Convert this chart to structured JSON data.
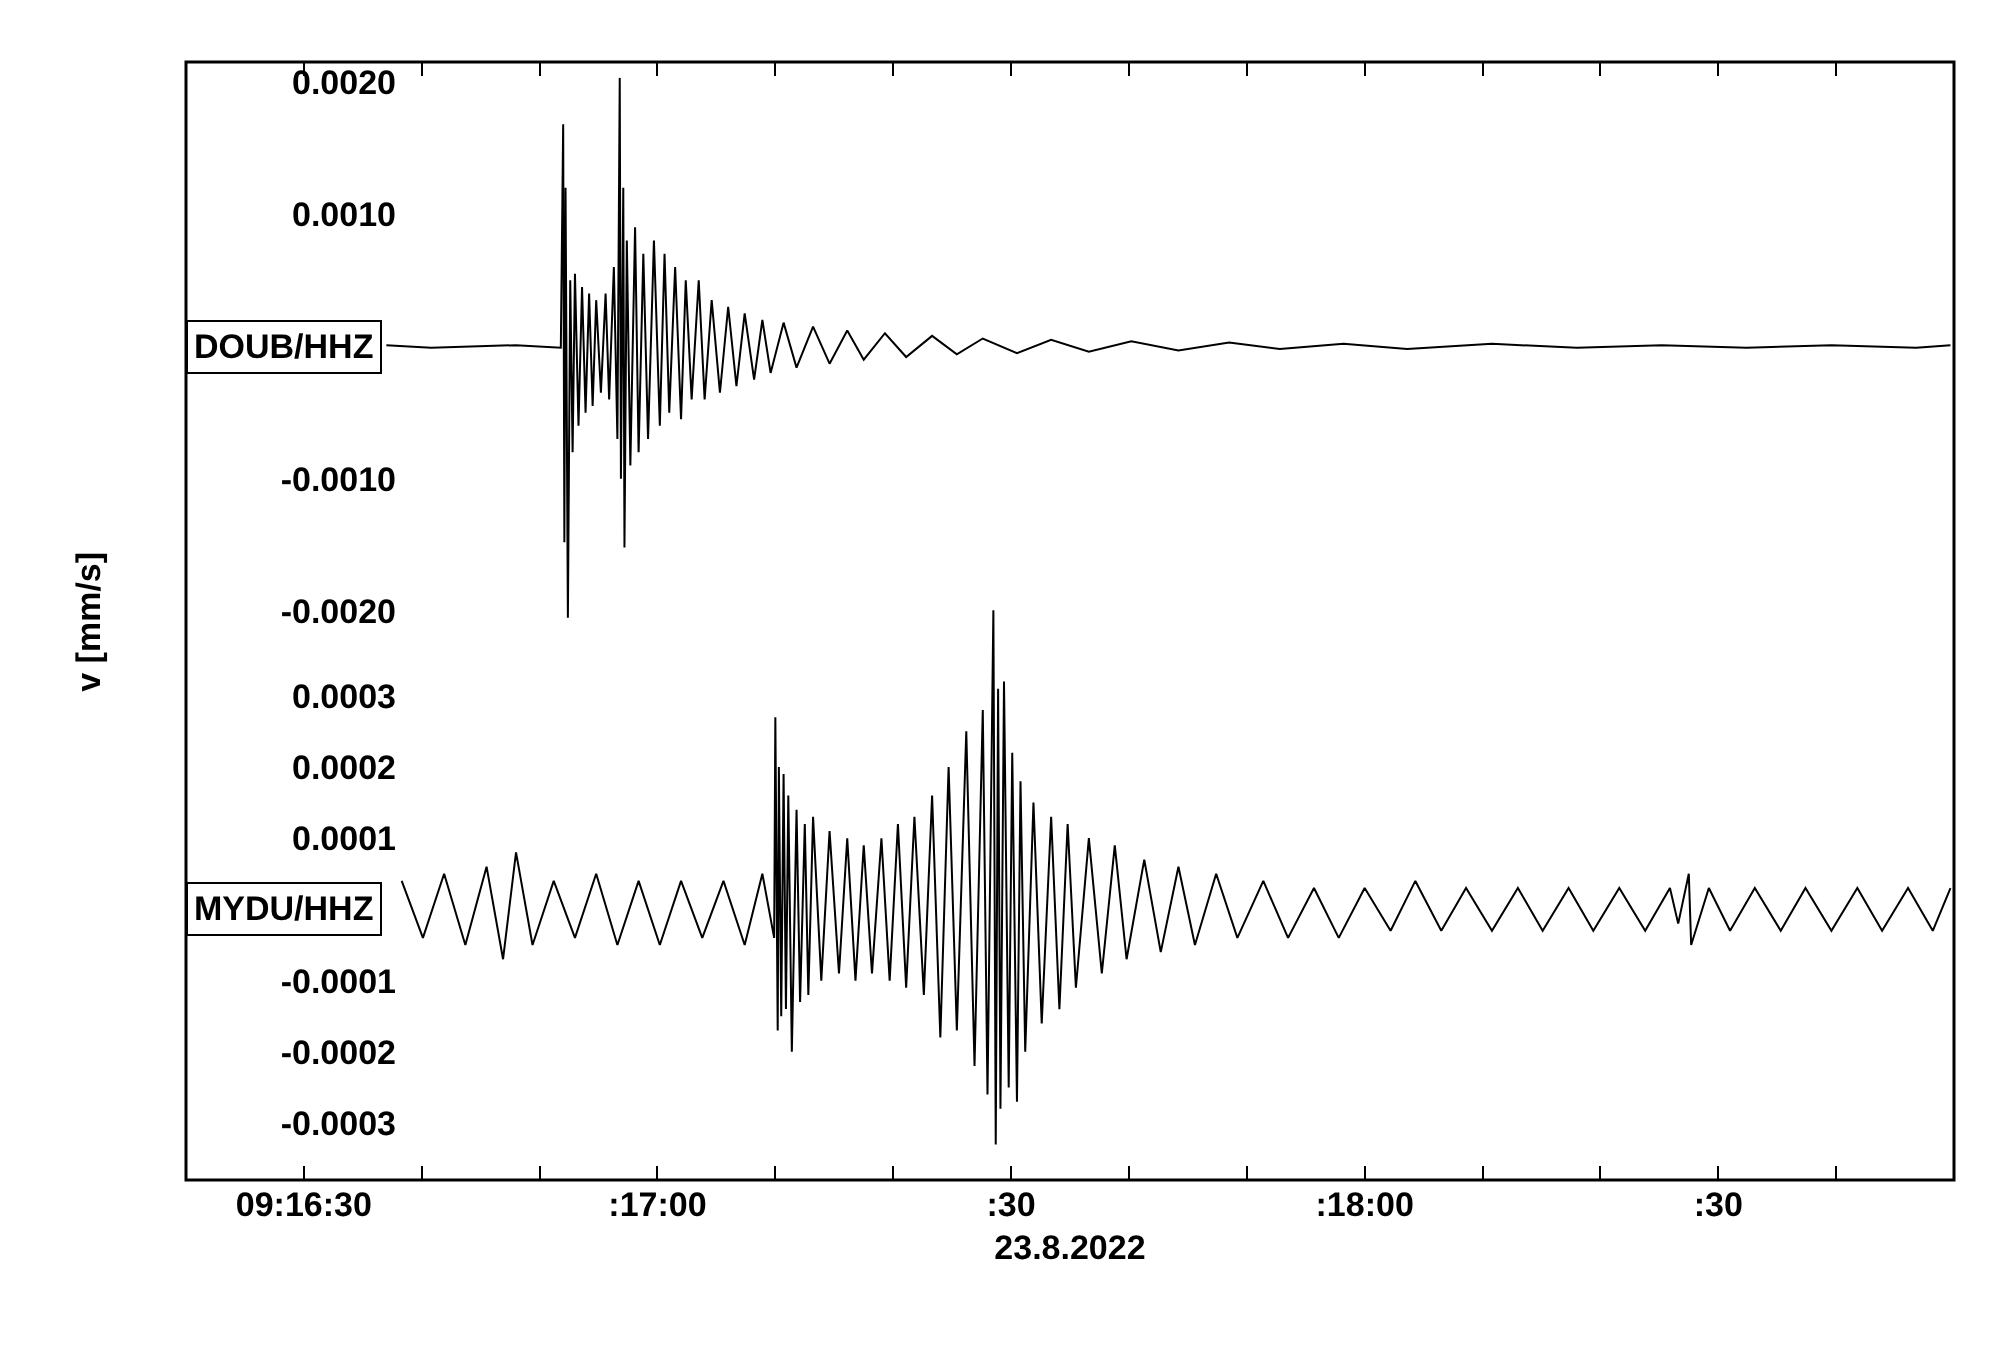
{
  "chart_data": [
    {
      "type": "line",
      "ylabel": "v [mm/s]",
      "tick_labels": "y",
      "xlim": [
        "2022-08-23T09:16:20",
        "2022-08-23T09:18:50"
      ],
      "xticks": [
        {
          "value": "2022-08-23T09:16:30",
          "label": null
        },
        {
          "value": "2022-08-23T09:16:40",
          "label": null
        },
        {
          "value": "2022-08-23T09:16:50",
          "label": null
        },
        {
          "value": "2022-08-23T09:17:00",
          "label": null
        },
        {
          "value": "2022-08-23T09:17:10",
          "label": null
        },
        {
          "value": "2022-08-23T09:17:20",
          "label": null
        },
        {
          "value": "2022-08-23T09:17:30",
          "label": null
        },
        {
          "value": "2022-08-23T09:17:40",
          "label": null
        },
        {
          "value": "2022-08-23T09:17:50",
          "label": null
        },
        {
          "value": "2022-08-23T09:18:00",
          "label": null
        },
        {
          "value": "2022-08-23T09:18:10",
          "label": null
        },
        {
          "value": "2022-08-23T09:18:20",
          "label": null
        },
        {
          "value": "2022-08-23T09:18:30",
          "label": null
        },
        {
          "value": "2022-08-23T09:18:40",
          "label": null
        }
      ],
      "ylim": [
        -0.0063,
        0.00215
      ],
      "yticks": [
        {
          "value": 0.002,
          "label": "0.0020"
        },
        {
          "value": 0.001,
          "label": "0.0010"
        },
        {
          "value": -0.001,
          "label": "-0.0010"
        },
        {
          "value": -0.002,
          "label": "-0.0020"
        }
      ],
      "series": [
        {
          "name": "DOUB/HHZ",
          "color": "#000000",
          "x": [
            "2022-08-23T09:16:37.0",
            "2022-08-23T09:16:40.8",
            "2022-08-23T09:16:48.0",
            "2022-08-23T09:16:51.8",
            "2022-08-23T09:16:52.0",
            "2022-08-23T09:16:52.1",
            "2022-08-23T09:16:52.2",
            "2022-08-23T09:16:52.4",
            "2022-08-23T09:16:52.6",
            "2022-08-23T09:16:52.8",
            "2022-08-23T09:16:53.0",
            "2022-08-23T09:16:53.3",
            "2022-08-23T09:16:53.6",
            "2022-08-23T09:16:53.9",
            "2022-08-23T09:16:54.2",
            "2022-08-23T09:16:54.5",
            "2022-08-23T09:16:54.8",
            "2022-08-23T09:16:55.2",
            "2022-08-23T09:16:55.6",
            "2022-08-23T09:16:55.9",
            "2022-08-23T09:16:56.3",
            "2022-08-23T09:16:56.6",
            "2022-08-23T09:16:56.8",
            "2022-08-23T09:16:56.9",
            "2022-08-23T09:16:57.1",
            "2022-08-23T09:16:57.2",
            "2022-08-23T09:16:57.4",
            "2022-08-23T09:16:57.7",
            "2022-08-23T09:16:58.1",
            "2022-08-23T09:16:58.4",
            "2022-08-23T09:16:58.8",
            "2022-08-23T09:16:59.2",
            "2022-08-23T09:16:59.7",
            "2022-08-23T09:17:00.2",
            "2022-08-23T09:17:00.6",
            "2022-08-23T09:17:01.0",
            "2022-08-23T09:17:01.5",
            "2022-08-23T09:17:02.0",
            "2022-08-23T09:17:02.4",
            "2022-08-23T09:17:02.9",
            "2022-08-23T09:17:03.5",
            "2022-08-23T09:17:04.0",
            "2022-08-23T09:17:04.6",
            "2022-08-23T09:17:05.3",
            "2022-08-23T09:17:06.0",
            "2022-08-23T09:17:06.7",
            "2022-08-23T09:17:07.4",
            "2022-08-23T09:17:08.2",
            "2022-08-23T09:17:08.9",
            "2022-08-23T09:17:09.6",
            "2022-08-23T09:17:10.7",
            "2022-08-23T09:17:11.8",
            "2022-08-23T09:17:13.2",
            "2022-08-23T09:17:14.6",
            "2022-08-23T09:17:16.1",
            "2022-08-23T09:17:17.5",
            "2022-08-23T09:17:19.3",
            "2022-08-23T09:17:21.1",
            "2022-08-23T09:17:23.3",
            "2022-08-23T09:17:25.4",
            "2022-08-23T09:17:27.6",
            "2022-08-23T09:17:30.5",
            "2022-08-23T09:17:33.4",
            "2022-08-23T09:17:36.6",
            "2022-08-23T09:17:40.2",
            "2022-08-23T09:17:44.2",
            "2022-08-23T09:17:48.5",
            "2022-08-23T09:17:52.8",
            "2022-08-23T09:17:58.2",
            "2022-08-23T09:18:03.6",
            "2022-08-23T09:18:10.8",
            "2022-08-23T09:18:18.0",
            "2022-08-23T09:18:25.2",
            "2022-08-23T09:18:32.4",
            "2022-08-23T09:18:39.6",
            "2022-08-23T09:18:46.8",
            "2022-08-23T09:18:49.7"
          ],
          "values": [
            1e-05,
            -1e-05,
            1e-05,
            -1e-05,
            0.00168,
            -0.00148,
            0.0012,
            -0.00205,
            0.0005,
            -0.0008,
            0.00055,
            -0.0006,
            0.00045,
            -0.0005,
            0.0004,
            -0.00045,
            0.00035,
            -0.00035,
            0.0004,
            -0.0004,
            0.0006,
            -0.0007,
            0.00203,
            -0.001,
            0.0012,
            -0.00152,
            0.0008,
            -0.0009,
            0.0009,
            -0.0008,
            0.0007,
            -0.0007,
            0.0008,
            -0.0006,
            0.0007,
            -0.0005,
            0.0006,
            -0.00055,
            0.0005,
            -0.0004,
            0.0005,
            -0.0004,
            0.00035,
            -0.00035,
            0.0003,
            -0.0003,
            0.00025,
            -0.00025,
            0.0002,
            -0.0002,
            0.00018,
            -0.00016,
            0.00015,
            -0.00013,
            0.00012,
            -0.0001,
            0.0001,
            -8e-05,
            8e-05,
            -6e-05,
            6e-05,
            -5e-05,
            5e-05,
            -4e-05,
            4e-05,
            -3e-05,
            3e-05,
            -2e-05,
            2e-05,
            -2e-05,
            2e-05,
            -1e-05,
            1e-05,
            -1e-05,
            1e-05,
            -1e-05,
            1e-05
          ]
        }
      ]
    },
    {
      "type": "line",
      "xlabel": "23.8.2022",
      "xlim": [
        "2022-08-23T09:16:20",
        "2022-08-23T09:18:50"
      ],
      "xticks": [
        {
          "value": "2022-08-23T09:16:30",
          "label": "09:16:30"
        },
        {
          "value": "2022-08-23T09:16:40",
          "label": null
        },
        {
          "value": "2022-08-23T09:16:50",
          "label": null
        },
        {
          "value": "2022-08-23T09:17:00",
          "label": ":17:00"
        },
        {
          "value": "2022-08-23T09:17:10",
          "label": null
        },
        {
          "value": "2022-08-23T09:17:20",
          "label": null
        },
        {
          "value": "2022-08-23T09:17:30",
          "label": ":30"
        },
        {
          "value": "2022-08-23T09:17:40",
          "label": null
        },
        {
          "value": "2022-08-23T09:17:50",
          "label": null
        },
        {
          "value": "2022-08-23T09:18:00",
          "label": ":18:00"
        },
        {
          "value": "2022-08-23T09:18:10",
          "label": null
        },
        {
          "value": "2022-08-23T09:18:20",
          "label": null
        },
        {
          "value": "2022-08-23T09:18:30",
          "label": ":30"
        },
        {
          "value": "2022-08-23T09:18:40",
          "label": null
        }
      ],
      "ylim": [
        -0.00038,
        0.00119
      ],
      "yticks": [
        0.0003,
        0.0002,
        0.0001,
        -0.0001,
        -0.0002,
        -0.0003
      ],
      "series": [
        {
          "name": "MYDU/HHZ",
          "color": "#000000",
          "x": [
            "2022-08-23T09:16:38.3",
            "2022-08-23T09:16:40.1",
            "2022-08-23T09:16:41.9",
            "2022-08-23T09:16:43.7",
            "2022-08-23T09:16:45.5",
            "2022-08-23T09:16:46.9",
            "2022-08-23T09:16:48.0",
            "2022-08-23T09:16:49.4",
            "2022-08-23T09:16:51.2",
            "2022-08-23T09:16:53.0",
            "2022-08-23T09:16:54.8",
            "2022-08-23T09:16:56.6",
            "2022-08-23T09:16:58.4",
            "2022-08-23T09:17:00.2",
            "2022-08-23T09:17:02.0",
            "2022-08-23T09:17:03.8",
            "2022-08-23T09:17:05.6",
            "2022-08-23T09:17:07.4",
            "2022-08-23T09:17:08.9",
            "2022-08-23T09:17:09.9",
            "2022-08-23T09:17:10.0",
            "2022-08-23T09:17:10.2",
            "2022-08-23T09:17:10.3",
            "2022-08-23T09:17:10.5",
            "2022-08-23T09:17:10.7",
            "2022-08-23T09:17:10.9",
            "2022-08-23T09:17:11.1",
            "2022-08-23T09:17:11.4",
            "2022-08-23T09:17:11.8",
            "2022-08-23T09:17:12.1",
            "2022-08-23T09:17:12.5",
            "2022-08-23T09:17:12.8",
            "2022-08-23T09:17:13.2",
            "2022-08-23T09:17:13.9",
            "2022-08-23T09:17:14.6",
            "2022-08-23T09:17:15.4",
            "2022-08-23T09:17:16.1",
            "2022-08-23T09:17:16.8",
            "2022-08-23T09:17:17.5",
            "2022-08-23T09:17:18.2",
            "2022-08-23T09:17:19.0",
            "2022-08-23T09:17:19.7",
            "2022-08-23T09:17:20.4",
            "2022-08-23T09:17:21.1",
            "2022-08-23T09:17:21.8",
            "2022-08-23T09:17:22.6",
            "2022-08-23T09:17:23.3",
            "2022-08-23T09:17:24.0",
            "2022-08-23T09:17:24.7",
            "2022-08-23T09:17:25.4",
            "2022-08-23T09:17:26.2",
            "2022-08-23T09:17:26.9",
            "2022-08-23T09:17:27.6",
            "2022-08-23T09:17:28.0",
            "2022-08-23T09:17:28.5",
            "2022-08-23T09:17:28.7",
            "2022-08-23T09:17:28.9",
            "2022-08-23T09:17:29.1",
            "2022-08-23T09:17:29.4",
            "2022-08-23T09:17:29.8",
            "2022-08-23T09:17:30.1",
            "2022-08-23T09:17:30.5",
            "2022-08-23T09:17:30.8",
            "2022-08-23T09:17:31.2",
            "2022-08-23T09:17:31.9",
            "2022-08-23T09:17:32.6",
            "2022-08-23T09:17:33.4",
            "2022-08-23T09:17:34.1",
            "2022-08-23T09:17:34.8",
            "2022-08-23T09:17:35.5",
            "2022-08-23T09:17:36.6",
            "2022-08-23T09:17:37.7",
            "2022-08-23T09:17:38.8",
            "2022-08-23T09:17:39.8",
            "2022-08-23T09:17:41.3",
            "2022-08-23T09:17:42.7",
            "2022-08-23T09:17:44.2",
            "2022-08-23T09:17:45.6",
            "2022-08-23T09:17:47.4",
            "2022-08-23T09:17:49.2",
            "2022-08-23T09:17:51.4",
            "2022-08-23T09:17:53.5",
            "2022-08-23T09:17:55.7",
            "2022-08-23T09:17:57.8",
            "2022-08-23T09:18:00.0",
            "2022-08-23T09:18:02.2",
            "2022-08-23T09:18:04.3",
            "2022-08-23T09:18:06.5",
            "2022-08-23T09:18:08.6",
            "2022-08-23T09:18:10.8",
            "2022-08-23T09:18:13.0",
            "2022-08-23T09:18:15.1",
            "2022-08-23T09:18:17.3",
            "2022-08-23T09:18:19.4",
            "2022-08-23T09:18:21.6",
            "2022-08-23T09:18:23.8",
            "2022-08-23T09:18:25.9",
            "2022-08-23T09:18:26.6",
            "2022-08-23T09:18:27.5",
            "2022-08-23T09:18:27.7",
            "2022-08-23T09:18:29.2",
            "2022-08-23T09:18:31.0",
            "2022-08-23T09:18:33.1",
            "2022-08-23T09:18:35.3",
            "2022-08-23T09:18:37.4",
            "2022-08-23T09:18:39.6",
            "2022-08-23T09:18:41.8",
            "2022-08-23T09:18:43.9",
            "2022-08-23T09:18:46.1",
            "2022-08-23T09:18:48.2",
            "2022-08-23T09:18:49.7"
          ],
          "values": [
            4e-05,
            -4e-05,
            5e-05,
            -5e-05,
            6e-05,
            -7e-05,
            8e-05,
            -5e-05,
            4e-05,
            -4e-05,
            5e-05,
            -5e-05,
            4e-05,
            -5e-05,
            4e-05,
            -4e-05,
            4e-05,
            -5e-05,
            5e-05,
            -4e-05,
            0.00027,
            -0.00017,
            0.0002,
            -0.00015,
            0.00019,
            -0.00014,
            0.00016,
            -0.0002,
            0.00014,
            -0.00013,
            0.00012,
            -0.00012,
            0.00013,
            -0.0001,
            0.00011,
            -9e-05,
            0.0001,
            -0.0001,
            9e-05,
            -9e-05,
            0.0001,
            -0.0001,
            0.00012,
            -0.00011,
            0.00013,
            -0.00012,
            0.00016,
            -0.00018,
            0.0002,
            -0.00017,
            0.00025,
            -0.00022,
            0.00028,
            -0.00026,
            0.00042,
            -0.00033,
            0.00031,
            -0.00028,
            0.00032,
            -0.00025,
            0.00022,
            -0.00027,
            0.00018,
            -0.0002,
            0.00015,
            -0.00016,
            0.00013,
            -0.00014,
            0.00012,
            -0.00011,
            0.0001,
            -9e-05,
            9e-05,
            -7e-05,
            7e-05,
            -6e-05,
            6e-05,
            -5e-05,
            5e-05,
            -4e-05,
            4e-05,
            -4e-05,
            3e-05,
            -4e-05,
            3e-05,
            -3e-05,
            4e-05,
            -3e-05,
            3e-05,
            -3e-05,
            3e-05,
            -3e-05,
            3e-05,
            -3e-05,
            3e-05,
            -3e-05,
            3e-05,
            -2e-05,
            5e-05,
            -5e-05,
            3e-05,
            -3e-05,
            3e-05,
            -3e-05,
            3e-05,
            -3e-05,
            3e-05,
            -3e-05,
            3e-05,
            -3e-05,
            3e-05
          ]
        }
      ]
    }
  ]
}
